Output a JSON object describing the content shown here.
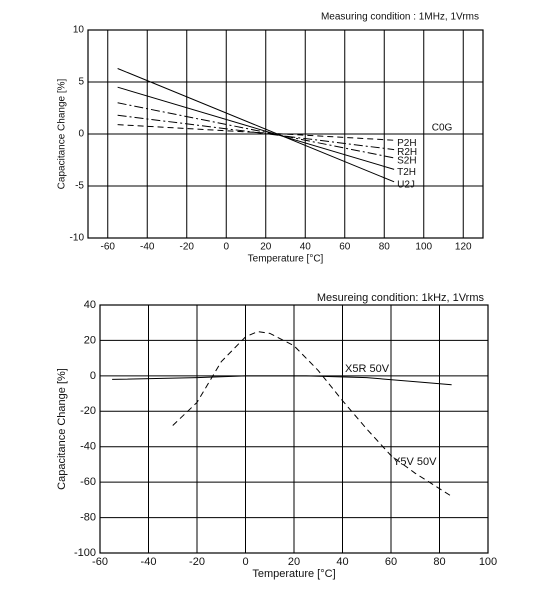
{
  "chart_data": [
    {
      "type": "line",
      "annotation": "Measuring condition : 1MHz, 1Vrms",
      "group_label": "C0G",
      "x_label": "Temperature [°C]",
      "y_label": "Capacitance Change [%]",
      "xlim": [
        -70,
        130
      ],
      "xticks": [
        -60,
        -40,
        -20,
        0,
        20,
        40,
        60,
        80,
        100,
        120
      ],
      "ylim": [
        -10,
        10
      ],
      "yticks": [
        10,
        5,
        0,
        -5,
        -10
      ],
      "grid": true,
      "series": [
        {
          "name": "P2H",
          "color": "#000000",
          "style": "dashed",
          "x": [
            -55,
            85
          ],
          "values": [
            0.9,
            -0.6
          ]
        },
        {
          "name": "R2H",
          "color": "#000000",
          "style": "dashdot",
          "x": [
            -55,
            85
          ],
          "values": [
            1.8,
            -1.5
          ]
        },
        {
          "name": "S2H",
          "color": "#000000",
          "style": "dashdot",
          "x": [
            -55,
            85
          ],
          "values": [
            3.0,
            -2.3
          ]
        },
        {
          "name": "T2H",
          "color": "#000000",
          "style": "solid",
          "x": [
            -55,
            85
          ],
          "values": [
            4.5,
            -3.4
          ]
        },
        {
          "name": "U2J",
          "color": "#000000",
          "style": "solid",
          "x": [
            -55,
            85
          ],
          "values": [
            6.3,
            -4.6
          ]
        }
      ]
    },
    {
      "type": "line",
      "annotation": "Mesureing condition: 1kHz, 1Vrms",
      "x_label": "Temperature [°C]",
      "y_label": "Capacitance Change [%]",
      "xlim": [
        -60,
        100
      ],
      "xticks": [
        -60,
        -40,
        -20,
        0,
        20,
        40,
        60,
        80,
        100
      ],
      "ylim": [
        -100,
        40
      ],
      "yticks": [
        40,
        20,
        0,
        -20,
        -40,
        -60,
        -80,
        -100
      ],
      "grid": true,
      "series": [
        {
          "name": "X5R 50V",
          "color": "#000000",
          "style": "solid",
          "x": [
            -55,
            -20,
            0,
            25,
            50,
            85
          ],
          "values": [
            -2,
            -1,
            0,
            0,
            -1,
            -5
          ]
        },
        {
          "name": "Y5V 50V",
          "color": "#000000",
          "style": "dashed",
          "x": [
            -30,
            -20,
            -10,
            0,
            5,
            10,
            20,
            30,
            40,
            50,
            60,
            70,
            85
          ],
          "values": [
            -28,
            -15,
            8,
            22,
            25,
            24,
            17,
            3,
            -14,
            -30,
            -45,
            -55,
            -68
          ]
        }
      ]
    }
  ]
}
